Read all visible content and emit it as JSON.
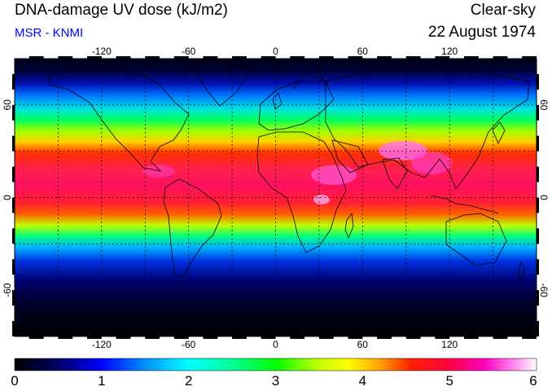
{
  "header": {
    "title": "DNA-damage UV dose (kJ/m2)",
    "source": "MSR - KNMI",
    "condition": "Clear-sky",
    "date": "22 August 1974"
  },
  "map": {
    "lon_ticks": [
      "-120",
      "-60",
      "0",
      "60",
      "120"
    ],
    "lat_ticks": [
      "60",
      "0",
      "-60"
    ]
  },
  "colorbar": {
    "labels": [
      "0",
      "1",
      "2",
      "3",
      "4",
      "5",
      "6"
    ]
  },
  "colors": {
    "title_text": "#000000",
    "source_text": "#0000ff",
    "gridline": "#000000",
    "coastline": "#000000"
  }
}
